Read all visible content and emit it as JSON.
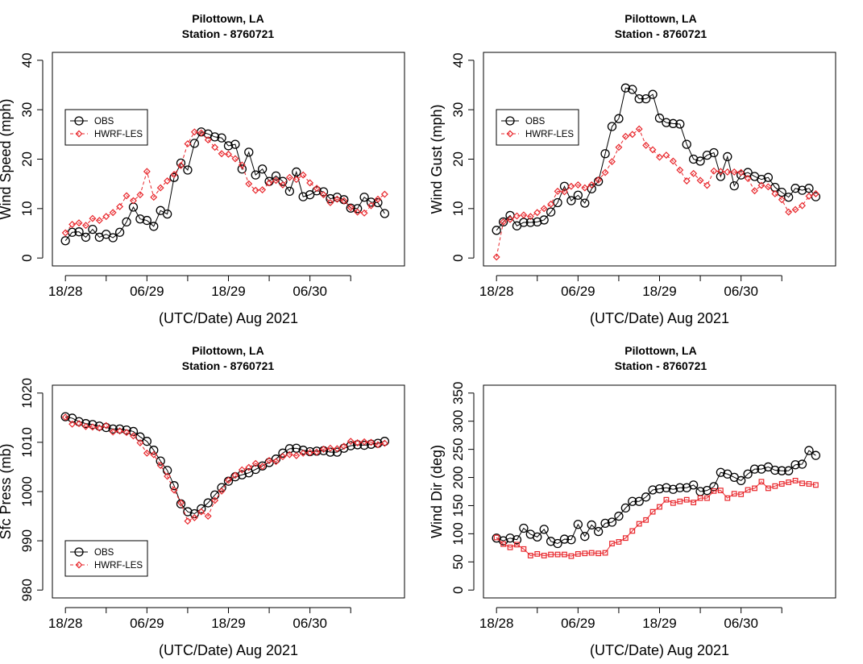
{
  "chart_data": [
    {
      "type": "line",
      "title": "Pilottown, LA",
      "subtitle": "Station - 8760721",
      "xlabel": "(UTC/Date) Aug 2021",
      "ylabel": "Wind Speed (mph)",
      "ylim": [
        0,
        40
      ],
      "yticks": [
        "0",
        "10",
        "20",
        "30",
        "40"
      ],
      "xticks": [
        {
          "label": "18/28",
          "x": 0,
          "labeled": true
        },
        {
          "label": "",
          "x": 6,
          "labeled": false
        },
        {
          "label": "06/29",
          "x": 12,
          "labeled": true
        },
        {
          "label": "",
          "x": 18,
          "labeled": false
        },
        {
          "label": "18/29",
          "x": 24,
          "labeled": true
        },
        {
          "label": "",
          "x": 30,
          "labeled": false
        },
        {
          "label": "06/30",
          "x": 36,
          "labeled": true
        },
        {
          "label": "",
          "x": 42,
          "labeled": false
        }
      ],
      "xlim": [
        0,
        48
      ],
      "grid": false,
      "legend": "center-left",
      "series": [
        {
          "name": "OBS",
          "color": "#000000",
          "marker": "circle",
          "dash": false,
          "values": [
            3.5,
            5.2,
            5.3,
            4.2,
            5.8,
            4.2,
            4.8,
            4.1,
            5.2,
            7.3,
            10.3,
            7.9,
            7.6,
            6.4,
            9.6,
            8.9,
            16.3,
            19.2,
            17.8,
            23.2,
            25.5,
            25.1,
            24.5,
            24.3,
            22.7,
            23.0,
            18.0,
            21.4,
            16.8,
            18.0,
            15.5,
            16.6,
            15.5,
            13.5,
            17.4,
            12.4,
            12.8,
            13.6,
            13.4,
            12.0,
            12.3,
            11.8,
            10.1,
            10.0,
            12.3,
            11.3,
            11.2,
            9.0
          ]
        },
        {
          "name": "HWRF-LES",
          "color": "#e8262b",
          "marker": "diamond",
          "dash": true,
          "values": [
            5.1,
            6.8,
            7.1,
            6.6,
            8.0,
            7.6,
            8.4,
            9.2,
            10.4,
            12.6,
            11.6,
            12.8,
            17.5,
            12.3,
            14.2,
            15.6,
            16.9,
            18.7,
            23.1,
            25.5,
            25.3,
            23.9,
            22.4,
            21.1,
            21.0,
            20.1,
            18.8,
            15.0,
            13.7,
            13.8,
            15.2,
            15.7,
            14.8,
            16.3,
            15.9,
            16.8,
            15.2,
            14.1,
            12.8,
            11.2,
            11.9,
            11.6,
            10.2,
            9.3,
            9.1,
            10.6,
            11.9,
            12.9
          ]
        }
      ]
    },
    {
      "type": "line",
      "title": "Pilottown, LA",
      "subtitle": "Station - 8760721",
      "xlabel": "(UTC/Date) Aug 2021",
      "ylabel": "Wind Gust (mph)",
      "ylim": [
        0,
        40
      ],
      "yticks": [
        "0",
        "10",
        "20",
        "30",
        "40"
      ],
      "xticks": [
        {
          "label": "18/28",
          "x": 0,
          "labeled": true
        },
        {
          "label": "",
          "x": 6,
          "labeled": false
        },
        {
          "label": "06/29",
          "x": 12,
          "labeled": true
        },
        {
          "label": "",
          "x": 18,
          "labeled": false
        },
        {
          "label": "18/29",
          "x": 24,
          "labeled": true
        },
        {
          "label": "",
          "x": 30,
          "labeled": false
        },
        {
          "label": "06/30",
          "x": 36,
          "labeled": true
        },
        {
          "label": "",
          "x": 42,
          "labeled": false
        }
      ],
      "xlim": [
        0,
        48
      ],
      "grid": false,
      "legend": "center-left",
      "series": [
        {
          "name": "OBS",
          "color": "#000000",
          "marker": "circle",
          "dash": false,
          "values": [
            5.6,
            7.3,
            8.6,
            6.5,
            7.2,
            7.2,
            7.3,
            7.7,
            9.3,
            11.2,
            14.5,
            11.6,
            12.7,
            11.1,
            14.0,
            15.5,
            21.1,
            26.6,
            28.2,
            34.4,
            34.1,
            32.2,
            32.2,
            33.1,
            28.3,
            27.4,
            27.2,
            27.1,
            23.0,
            20.0,
            19.6,
            20.8,
            21.3,
            16.5,
            20.5,
            14.6,
            16.8,
            17.3,
            16.5,
            15.9,
            16.3,
            14.3,
            13.3,
            12.3,
            14.1,
            13.7,
            14.1,
            12.4
          ]
        },
        {
          "name": "HWRF-LES",
          "color": "#e8262b",
          "marker": "diamond",
          "dash": true,
          "values": [
            0.2,
            7.3,
            7.8,
            8.5,
            8.7,
            8.4,
            9.2,
            10.0,
            10.9,
            13.5,
            13.4,
            14.5,
            14.8,
            14.2,
            14.8,
            15.8,
            17.3,
            19.5,
            22.4,
            24.6,
            25.0,
            26.1,
            22.8,
            21.9,
            20.4,
            20.8,
            19.6,
            17.8,
            15.6,
            17.1,
            15.7,
            14.7,
            17.6,
            17.5,
            17.4,
            17.4,
            17.3,
            16.1,
            13.6,
            14.7,
            14.4,
            13.0,
            11.8,
            9.3,
            9.8,
            10.6,
            12.5,
            13.0
          ]
        }
      ]
    },
    {
      "type": "line",
      "title": "Pilottown, LA",
      "subtitle": "Station - 8760721",
      "xlabel": "(UTC/Date) Aug 2021",
      "ylabel": "Sfc Press (mb)",
      "ylim": [
        980,
        1020
      ],
      "yticks": [
        "980",
        "990",
        "1000",
        "1010",
        "1020"
      ],
      "xticks": [
        {
          "label": "18/28",
          "x": 0,
          "labeled": true
        },
        {
          "label": "",
          "x": 6,
          "labeled": false
        },
        {
          "label": "06/29",
          "x": 12,
          "labeled": true
        },
        {
          "label": "",
          "x": 18,
          "labeled": false
        },
        {
          "label": "18/29",
          "x": 24,
          "labeled": true
        },
        {
          "label": "",
          "x": 30,
          "labeled": false
        },
        {
          "label": "06/30",
          "x": 36,
          "labeled": true
        },
        {
          "label": "",
          "x": 42,
          "labeled": false
        }
      ],
      "xlim": [
        0,
        48
      ],
      "grid": false,
      "legend": "bottom-left",
      "series": [
        {
          "name": "OBS",
          "color": "#000000",
          "marker": "circle",
          "dash": false,
          "values": [
            1015.2,
            1014.9,
            1014.2,
            1013.8,
            1013.6,
            1013.3,
            1013.0,
            1012.7,
            1012.7,
            1012.5,
            1012.2,
            1011.1,
            1010.2,
            1008.4,
            1006.2,
            1004.3,
            1001.2,
            997.5,
            995.9,
            995.5,
            996.5,
            997.7,
            999.3,
            1000.8,
            1002.1,
            1003.0,
            1003.4,
            1003.8,
            1004.5,
            1005.2,
            1005.9,
            1006.6,
            1007.8,
            1008.7,
            1008.8,
            1008.4,
            1008.1,
            1008.2,
            1008.3,
            1008.0,
            1008.0,
            1008.8,
            1009.3,
            1009.5,
            1009.4,
            1009.6,
            1009.8,
            1010.2
          ]
        },
        {
          "name": "HWRF-LES",
          "color": "#e8262b",
          "marker": "diamond",
          "dash": true,
          "values": [
            1015.1,
            1013.7,
            1013.8,
            1013.2,
            1013.1,
            1012.9,
            1013.4,
            1012.1,
            1012.3,
            1012.0,
            1011.3,
            1009.9,
            1007.8,
            1007.5,
            1005.3,
            1003.1,
            1000.3,
            997.7,
            994.0,
            994.7,
            995.9,
            995.0,
            998.2,
            1000.1,
            1002.3,
            1003.3,
            1004.4,
            1004.9,
            1005.7,
            1005.1,
            1006.3,
            1006.1,
            1007.1,
            1007.5,
            1007.3,
            1007.8,
            1007.9,
            1008.0,
            1008.6,
            1008.8,
            1008.7,
            1009.2,
            1010.2,
            1009.9,
            1010.1,
            1010.0,
            1009.5,
            1009.8
          ]
        }
      ]
    },
    {
      "type": "line",
      "title": "Pilottown, LA",
      "subtitle": "Station - 8760721",
      "xlabel": "(UTC/Date) Aug 2021",
      "ylabel": "Wind Dir (deg)",
      "ylim": [
        0,
        360
      ],
      "yticks": [
        "0",
        "50",
        "100",
        "150",
        "200",
        "250",
        "300",
        "350"
      ],
      "xticks": [
        {
          "label": "18/28",
          "x": 0,
          "labeled": true
        },
        {
          "label": "",
          "x": 6,
          "labeled": false
        },
        {
          "label": "06/29",
          "x": 12,
          "labeled": true
        },
        {
          "label": "",
          "x": 18,
          "labeled": false
        },
        {
          "label": "18/29",
          "x": 24,
          "labeled": true
        },
        {
          "label": "",
          "x": 30,
          "labeled": false
        },
        {
          "label": "06/30",
          "x": 36,
          "labeled": true
        },
        {
          "label": "",
          "x": 42,
          "labeled": false
        }
      ],
      "xlim": [
        0,
        48
      ],
      "grid": false,
      "legend": "none",
      "series": [
        {
          "name": "",
          "color": "#000000",
          "marker": "circle",
          "dash": false,
          "values": [
            95,
            90,
            95,
            92,
            113,
            102,
            97,
            111,
            89,
            85,
            93,
            92,
            120,
            98,
            119,
            107,
            122,
            124,
            135,
            150,
            162,
            162,
            170,
            183,
            185,
            187,
            184,
            187,
            187,
            192,
            180,
            182,
            189,
            215,
            212,
            206,
            200,
            212,
            221,
            221,
            225,
            219,
            218,
            218,
            229,
            230,
            255,
            246
          ]
        },
        {
          "name": "",
          "color": "#e8262b",
          "marker": "square",
          "dash": false,
          "values": [
            96,
            84,
            78,
            83,
            75,
            63,
            66,
            63,
            65,
            65,
            65,
            62,
            66,
            67,
            68,
            67,
            68,
            85,
            88,
            95,
            108,
            121,
            128,
            143,
            152,
            165,
            159,
            162,
            165,
            160,
            168,
            168,
            181,
            182,
            168,
            176,
            175,
            183,
            186,
            198,
            186,
            190,
            194,
            197,
            200,
            195,
            194,
            192
          ]
        }
      ]
    }
  ]
}
